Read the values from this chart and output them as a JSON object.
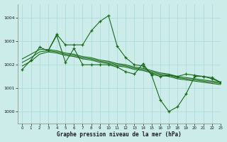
{
  "background_color": "#ccecea",
  "grid_color": "#aad8d8",
  "line_color": "#1a6b1a",
  "title": "Graphe pression niveau de la mer (hPa)",
  "xlim": [
    -0.5,
    23
  ],
  "ylim": [
    999.5,
    1004.6
  ],
  "yticks": [
    1000,
    1001,
    1002,
    1003,
    1004
  ],
  "xticks": [
    0,
    1,
    2,
    3,
    4,
    5,
    6,
    7,
    8,
    9,
    10,
    11,
    12,
    13,
    14,
    15,
    16,
    17,
    18,
    19,
    20,
    21,
    22,
    23
  ],
  "series1_jagged": {
    "x": [
      0,
      1,
      2,
      3,
      4,
      5,
      6,
      7,
      8,
      9,
      10,
      11,
      12,
      13,
      14,
      15,
      16,
      17,
      18,
      19,
      20,
      21,
      22,
      23
    ],
    "y": [
      1001.8,
      1002.2,
      1002.75,
      1002.6,
      1003.3,
      1002.85,
      1002.85,
      1002.85,
      1003.45,
      1003.85,
      1004.1,
      1002.8,
      1002.3,
      1002.0,
      1001.95,
      1001.6,
      1001.5,
      1001.55,
      1001.5,
      1001.6,
      1001.55,
      1001.5,
      1001.4,
      1001.25
    ]
  },
  "series2_jagged": {
    "x": [
      3,
      4,
      5,
      6,
      7,
      8,
      9,
      10,
      11,
      12,
      13,
      14,
      15,
      16,
      17,
      18,
      19,
      20,
      21,
      22,
      23
    ],
    "y": [
      1002.6,
      1003.25,
      1002.1,
      1002.7,
      1002.0,
      1002.0,
      1002.0,
      1002.0,
      1001.9,
      1001.7,
      1001.6,
      1002.05,
      1001.55,
      1000.5,
      1000.0,
      1000.2,
      1000.75,
      1001.5,
      1001.5,
      1001.45,
      1001.25
    ]
  },
  "series3_smooth": {
    "x": [
      0,
      1,
      2,
      3,
      4,
      5,
      6,
      7,
      8,
      9,
      10,
      11,
      12,
      13,
      14,
      15,
      16,
      17,
      18,
      19,
      20,
      21,
      22,
      23
    ],
    "y": [
      1002.25,
      1002.45,
      1002.65,
      1002.65,
      1002.6,
      1002.5,
      1002.45,
      1002.35,
      1002.3,
      1002.2,
      1002.15,
      1002.05,
      1002.0,
      1001.9,
      1001.85,
      1001.75,
      1001.65,
      1001.6,
      1001.5,
      1001.45,
      1001.4,
      1001.35,
      1001.3,
      1001.25
    ]
  },
  "series4_smooth": {
    "x": [
      0,
      1,
      2,
      3,
      4,
      5,
      6,
      7,
      8,
      9,
      10,
      11,
      12,
      13,
      14,
      15,
      16,
      17,
      18,
      19,
      20,
      21,
      22,
      23
    ],
    "y": [
      1002.1,
      1002.3,
      1002.55,
      1002.6,
      1002.55,
      1002.45,
      1002.4,
      1002.3,
      1002.25,
      1002.15,
      1002.1,
      1002.0,
      1001.95,
      1001.85,
      1001.8,
      1001.7,
      1001.6,
      1001.55,
      1001.45,
      1001.4,
      1001.35,
      1001.3,
      1001.25,
      1001.2
    ]
  },
  "series5_smooth": {
    "x": [
      0,
      1,
      2,
      3,
      4,
      5,
      6,
      7,
      8,
      9,
      10,
      11,
      12,
      13,
      14,
      15,
      16,
      17,
      18,
      19,
      20,
      21,
      22,
      23
    ],
    "y": [
      1001.95,
      1002.15,
      1002.45,
      1002.55,
      1002.5,
      1002.4,
      1002.35,
      1002.25,
      1002.2,
      1002.1,
      1002.05,
      1001.95,
      1001.9,
      1001.8,
      1001.75,
      1001.65,
      1001.55,
      1001.5,
      1001.4,
      1001.35,
      1001.3,
      1001.25,
      1001.2,
      1001.15
    ]
  }
}
